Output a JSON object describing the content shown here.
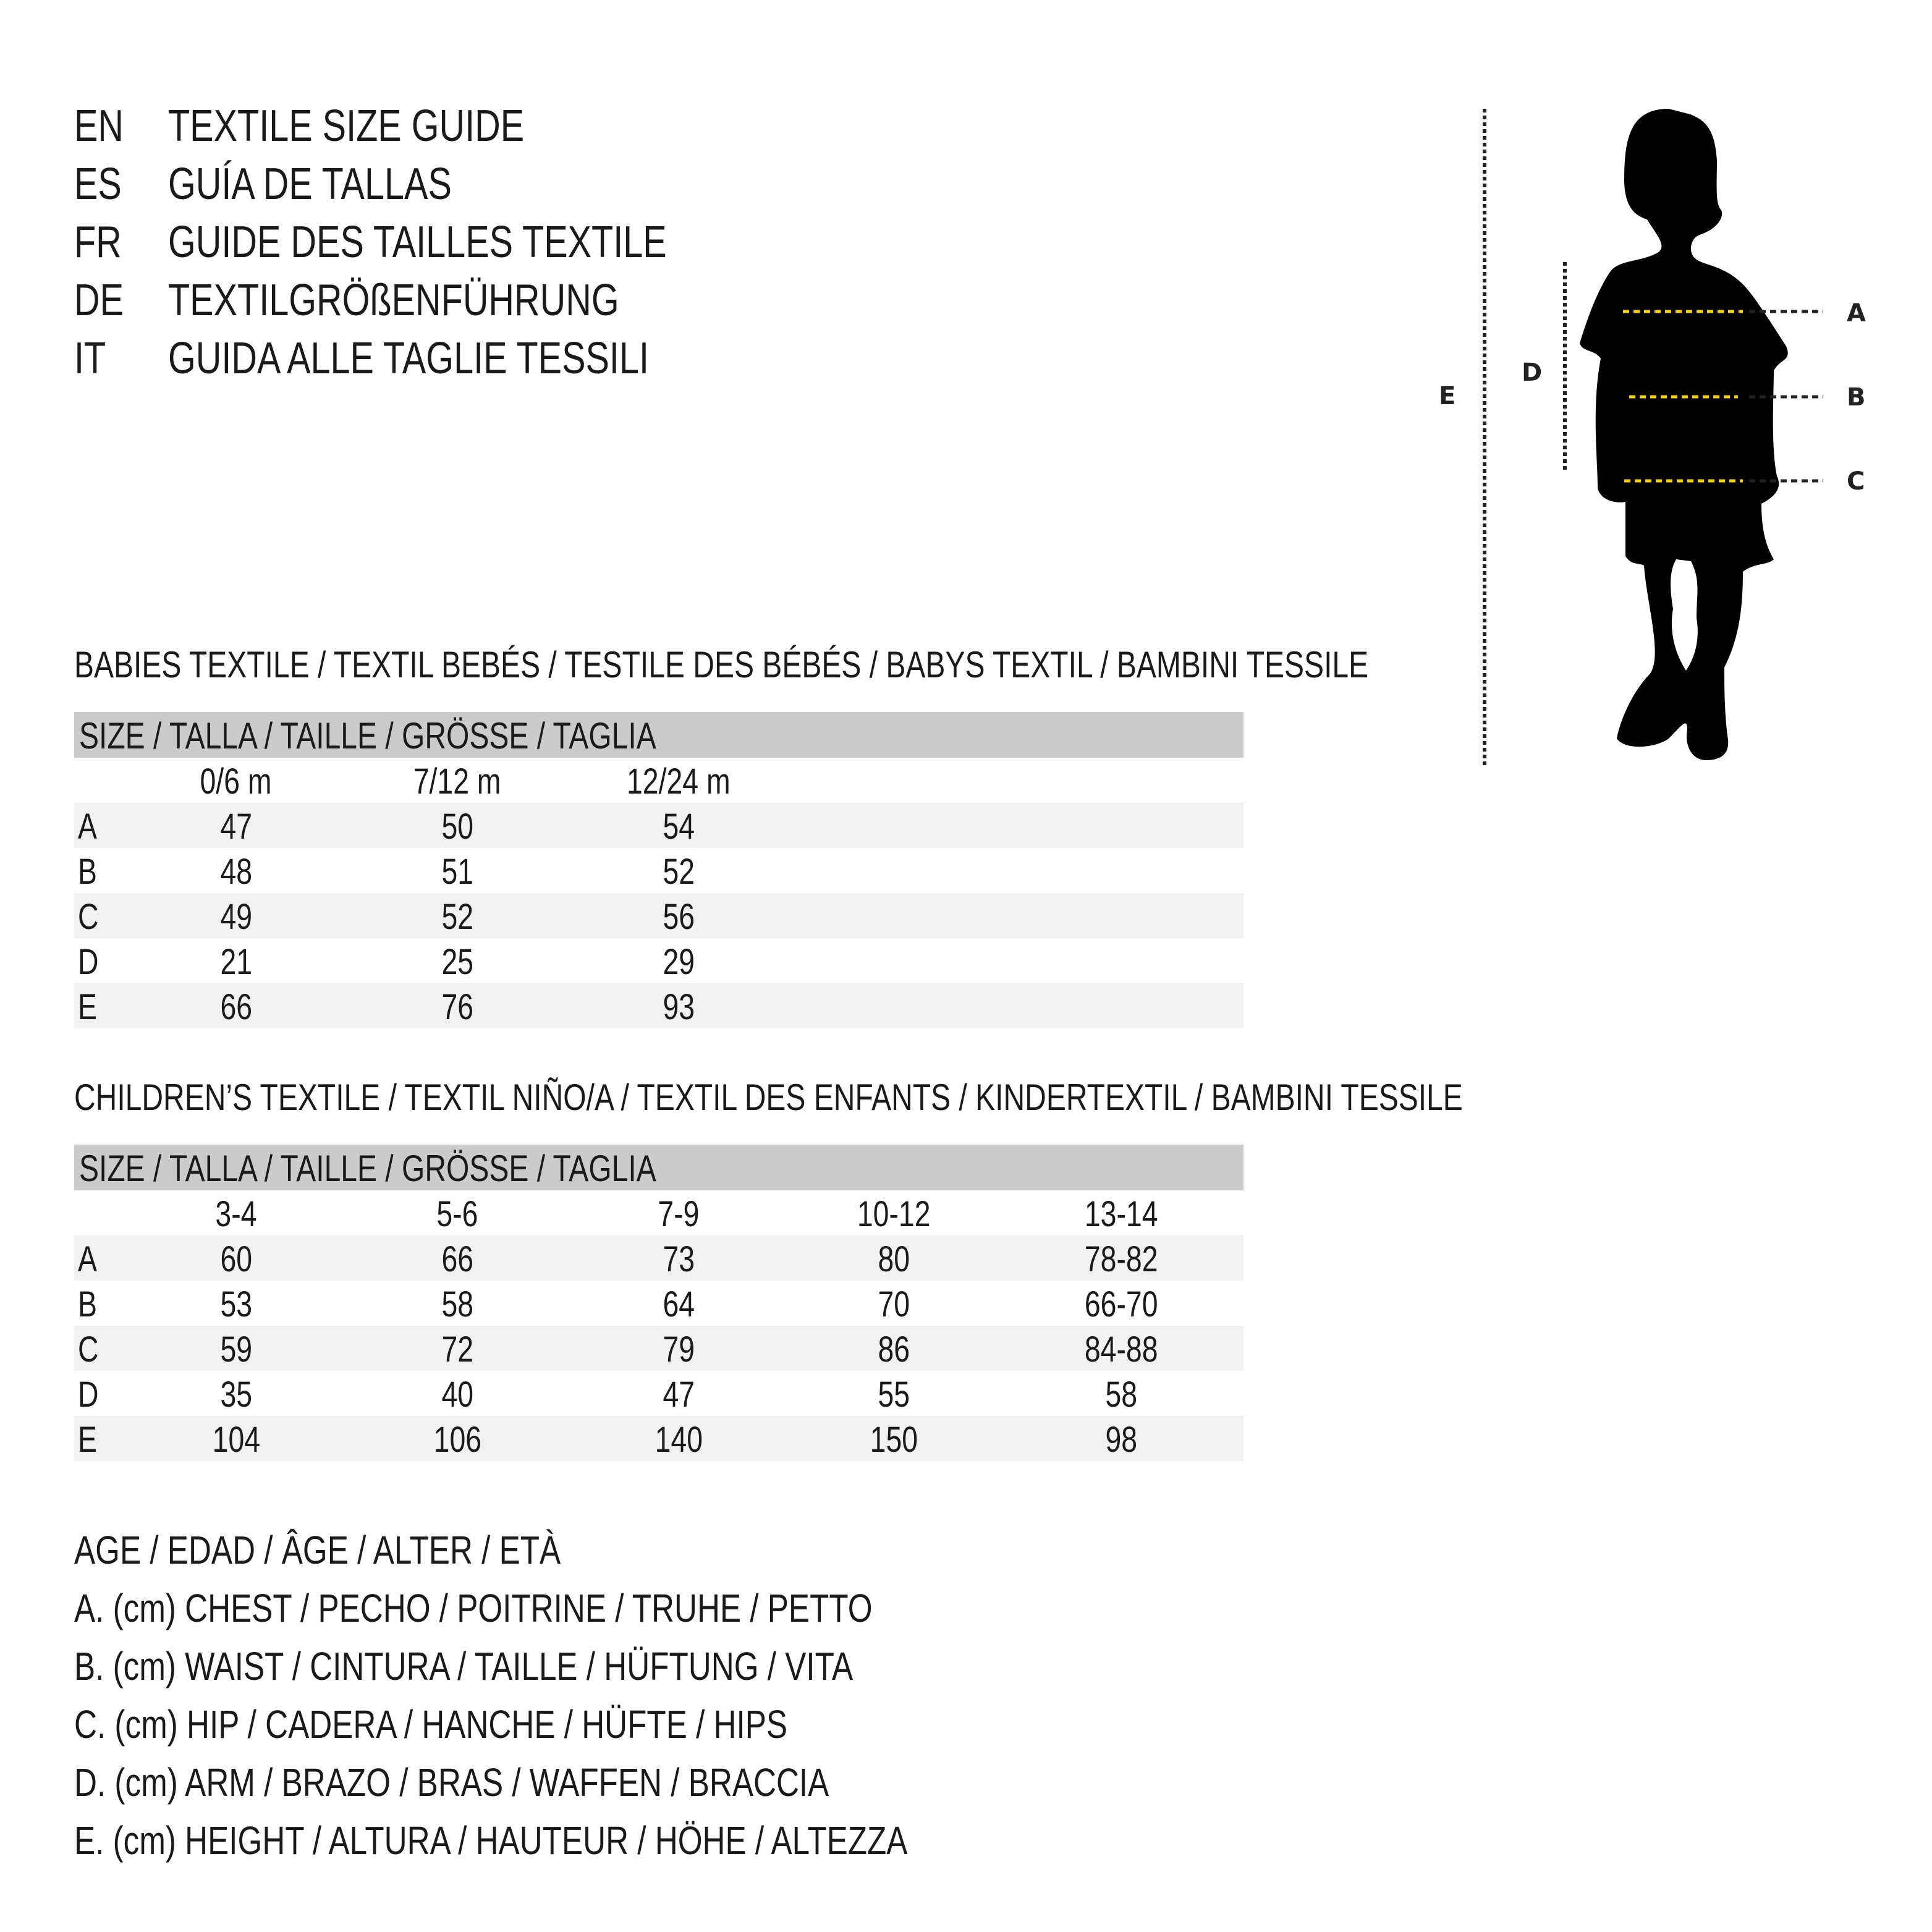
{
  "titles": [
    {
      "code": "EN",
      "text": "TEXTILE SIZE GUIDE"
    },
    {
      "code": "ES",
      "text": "GUÍA DE TALLAS"
    },
    {
      "code": "FR",
      "text": "GUIDE DES TAILLES TEXTILE"
    },
    {
      "code": "DE",
      "text": "TEXTILGRÖßENFÜHRUNG"
    },
    {
      "code": "IT",
      "text": "GUIDA ALLE TAGLIE TESSILI"
    }
  ],
  "figure": {
    "labels": {
      "a": "A",
      "b": "B",
      "c": "C",
      "d": "D",
      "e": "E"
    },
    "colors": {
      "silhouette": "#000000",
      "measure_line": "#f2d21b",
      "guide_line": "#222222"
    }
  },
  "babies": {
    "heading": "BABIES TEXTILE / TEXTIL BEBÉS / TESTILE DES BÉBÉS / BABYS TEXTIL / BAMBINI TESSILE",
    "size_header": "SIZE / TALLA / TAILLE / GRÖSSE / TAGLIA",
    "columns": [
      "0/6 m",
      "7/12 m",
      "12/24 m"
    ],
    "rows": [
      {
        "label": "A",
        "values": [
          "47",
          "50",
          "54"
        ]
      },
      {
        "label": "B",
        "values": [
          "48",
          "51",
          "52"
        ]
      },
      {
        "label": "C",
        "values": [
          "49",
          "52",
          "56"
        ]
      },
      {
        "label": "D",
        "values": [
          "21",
          "25",
          "29"
        ]
      },
      {
        "label": "E",
        "values": [
          "66",
          "76",
          "93"
        ]
      }
    ]
  },
  "children": {
    "heading": "CHILDREN’S TEXTILE / TEXTIL NIÑO/A / TEXTIL DES ENFANTS / KINDERTEXTIL / BAMBINI TESSILE",
    "size_header": "SIZE / TALLA / TAILLE / GRÖSSE / TAGLIA",
    "columns": [
      "3-4",
      "5-6",
      "7-9",
      "10-12",
      "13-14"
    ],
    "rows": [
      {
        "label": "A",
        "values": [
          "60",
          "66",
          "73",
          "80",
          "78-82"
        ]
      },
      {
        "label": "B",
        "values": [
          "53",
          "58",
          "64",
          "70",
          "66-70"
        ]
      },
      {
        "label": "C",
        "values": [
          "59",
          "72",
          "79",
          "86",
          "84-88"
        ]
      },
      {
        "label": "D",
        "values": [
          "35",
          "40",
          "47",
          "55",
          "58"
        ]
      },
      {
        "label": "E",
        "values": [
          "104",
          "106",
          "140",
          "150",
          "98"
        ]
      }
    ]
  },
  "legend": [
    "AGE / EDAD / ÂGE / ALTER / ETÀ",
    "A. (cm) CHEST / PECHO / POITRINE / TRUHE / PETTO",
    "B. (cm) WAIST / CINTURA / TAILLE / HÜFTUNG / VITA",
    "C. (cm) HIP / CADERA / HANCHE / HÜFTE / HIPS",
    "D. (cm) ARM / BRAZO / BRAS / WAFFEN / BRACCIA",
    "E. (cm) HEIGHT / ALTURA / HAUTEUR / HÖHE / ALTEZZA"
  ]
}
